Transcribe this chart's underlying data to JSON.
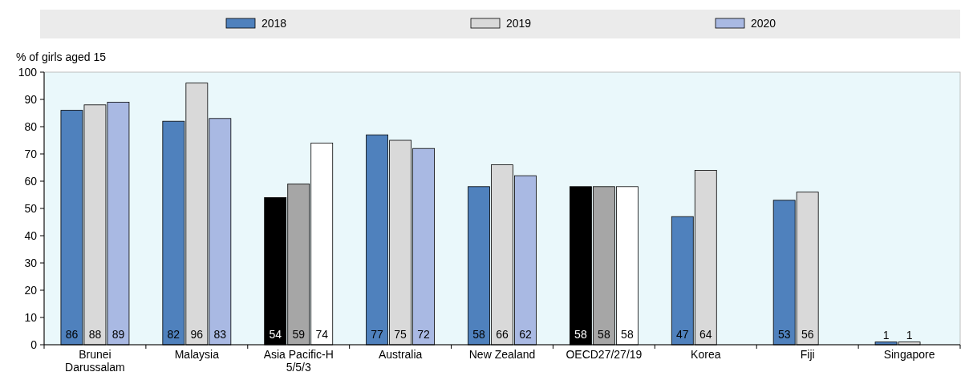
{
  "chart_data": {
    "type": "bar",
    "ylabel": "% of girls aged 15",
    "categories": [
      "Brunei Darussalam",
      "Malaysia",
      "Asia Pacific-H 5/5/3",
      "Australia",
      "New Zealand",
      "OECD27/27/19",
      "Korea",
      "Fiji",
      "Singapore"
    ],
    "series": [
      {
        "name": "2018",
        "color": "#4f81bd",
        "colors": [
          "#4f81bd",
          "#4f81bd",
          "#000000",
          "#4f81bd",
          "#4f81bd",
          "#000000",
          "#4f81bd",
          "#4f81bd",
          "#4f81bd"
        ],
        "values": [
          86,
          82,
          54,
          77,
          58,
          58,
          47,
          53,
          1
        ]
      },
      {
        "name": "2019",
        "color": "#d9d9d9",
        "colors": [
          "#d9d9d9",
          "#d9d9d9",
          "#a6a6a6",
          "#d9d9d9",
          "#d9d9d9",
          "#a6a6a6",
          "#d9d9d9",
          "#d9d9d9",
          "#d9d9d9"
        ],
        "values": [
          88,
          96,
          59,
          75,
          66,
          58,
          64,
          56,
          1
        ]
      },
      {
        "name": "2020",
        "color": "#a9b9e3",
        "colors": [
          "#a9b9e3",
          "#a9b9e3",
          "#ffffff",
          "#a9b9e3",
          "#a9b9e3",
          "#ffffff",
          null,
          null,
          null
        ],
        "values": [
          89,
          83,
          74,
          72,
          62,
          58,
          null,
          null,
          null
        ]
      }
    ],
    "ylim": [
      0,
      100
    ],
    "yticks": [
      0,
      10,
      20,
      30,
      40,
      50,
      60,
      70,
      80,
      90,
      100
    ],
    "data_labels": true,
    "legend": "top",
    "grid": false
  }
}
